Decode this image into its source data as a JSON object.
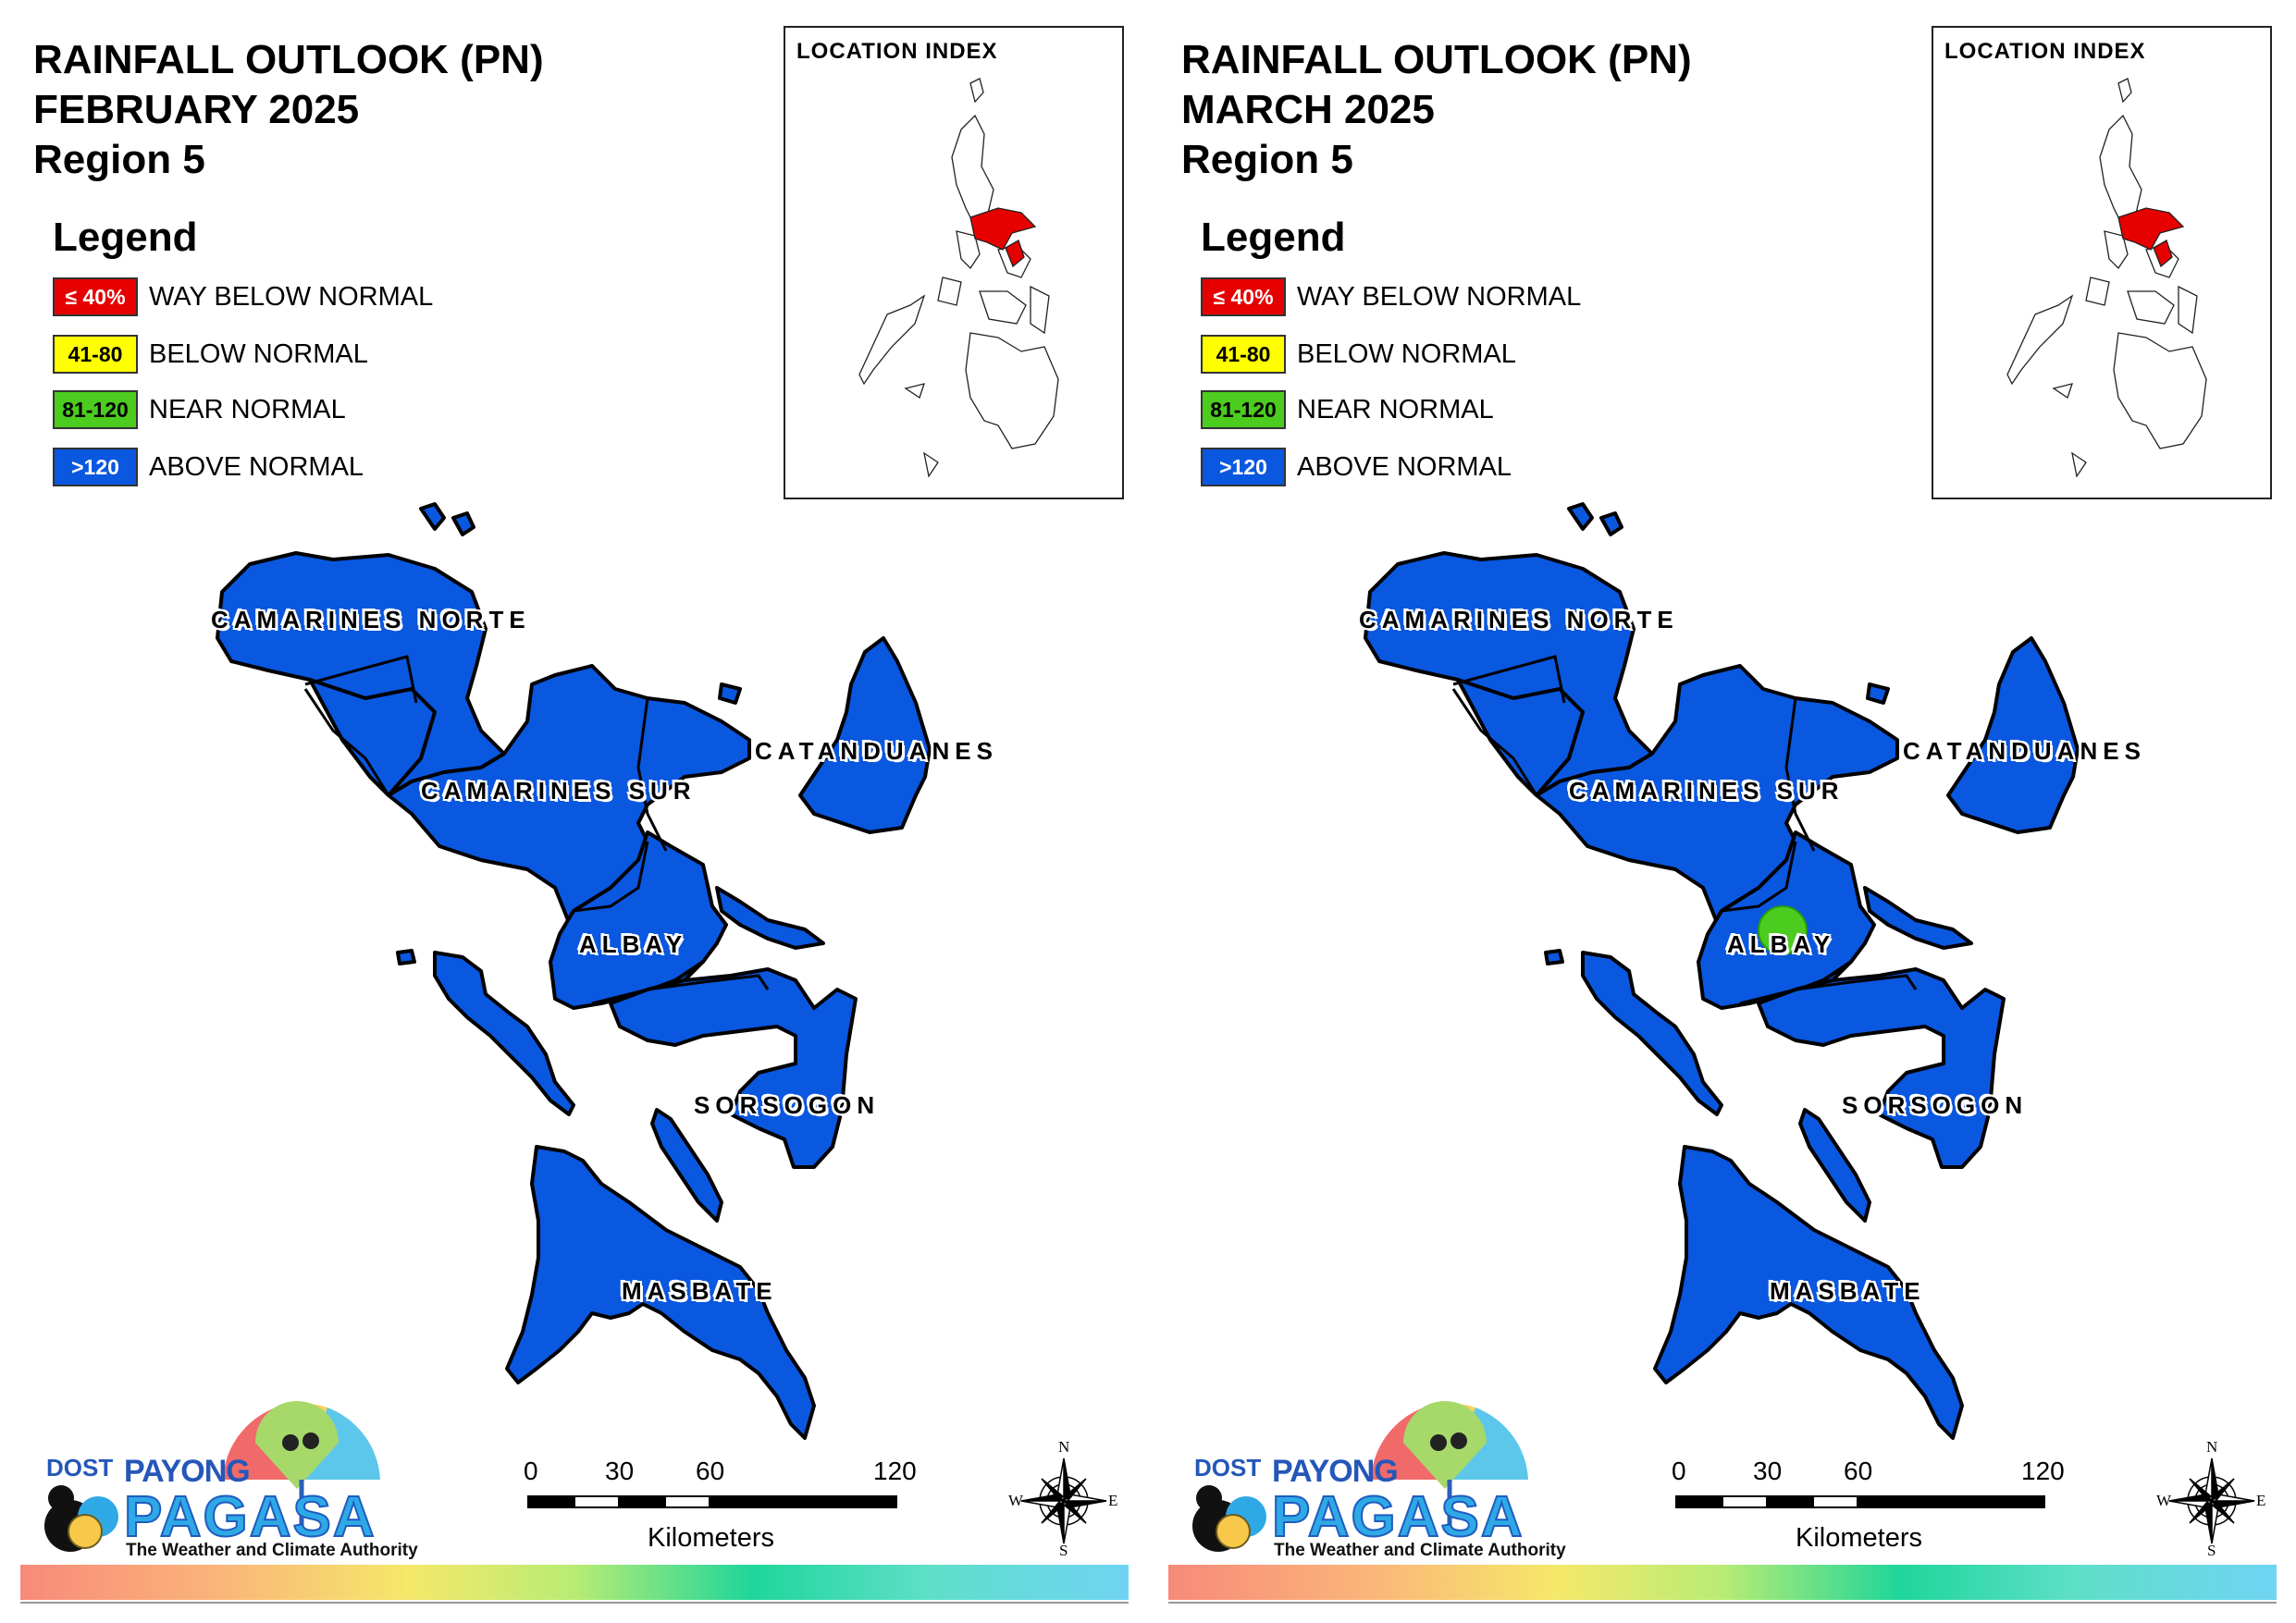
{
  "legend": {
    "heading": "Legend",
    "items": [
      {
        "swatch": "≤ 40%",
        "label": "WAY BELOW NORMAL",
        "color": "#e60000"
      },
      {
        "swatch": "41-80",
        "label": "BELOW NORMAL",
        "color": "#ffff00"
      },
      {
        "swatch": "81-120",
        "label": "NEAR NORMAL",
        "color": "#4ccc1e"
      },
      {
        "swatch": ">120",
        "label": "ABOVE NORMAL",
        "color": "#0a57e0"
      }
    ]
  },
  "inset_title": "LOCATION INDEX",
  "provinces": {
    "camarines_norte": "CAMARINES NORTE",
    "camarines_sur": "CAMARINES SUR",
    "catanduanes": "CATANDUANES",
    "albay": "ALBAY",
    "sorsogon": "SORSOGON",
    "masbate": "MASBATE"
  },
  "scale": {
    "ticks": [
      "0",
      "30",
      "60",
      "120"
    ],
    "unit": "Kilometers"
  },
  "compass": {
    "n": "N",
    "s": "S",
    "e": "E",
    "w": "W"
  },
  "logo": {
    "dost": "DOST",
    "payong": "PAYONG",
    "pagasa": "PAGASA",
    "tagline": "The Weather and Climate Authority"
  },
  "maps": [
    {
      "title_line1": "RAINFALL OUTLOOK (PN)",
      "title_line2": "FEBRUARY 2025",
      "title_line3": "Region 5",
      "near_normal_spot": false
    },
    {
      "title_line1": "RAINFALL OUTLOOK (PN)",
      "title_line2": "MARCH 2025",
      "title_line3": "Region 5",
      "near_normal_spot": true
    }
  ]
}
